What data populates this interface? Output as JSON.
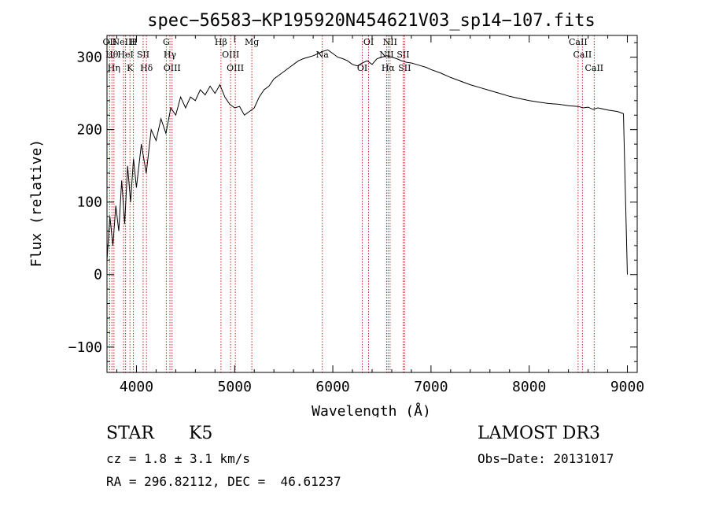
{
  "chart_data": {
    "type": "line",
    "title": "spec−56583−KP195920N454621V03_sp14−107.fits",
    "xlabel": "Wavelength (Å)",
    "ylabel": "Flux (relative)",
    "xlim": [
      3700,
      9100
    ],
    "ylim": [
      -135,
      330
    ],
    "grid": false,
    "xticks": [
      4000,
      5000,
      6000,
      7000,
      8000,
      9000
    ],
    "yticks": [
      -100,
      0,
      100,
      200,
      300
    ],
    "ytick_labels": [
      "−100",
      "0",
      "100",
      "200",
      "300"
    ],
    "series": [
      {
        "name": "spectrum",
        "x": [
          3700,
          3730,
          3760,
          3790,
          3820,
          3850,
          3880,
          3910,
          3940,
          3970,
          4000,
          4050,
          4100,
          4150,
          4200,
          4250,
          4300,
          4350,
          4400,
          4450,
          4500,
          4550,
          4600,
          4650,
          4700,
          4750,
          4800,
          4850,
          4900,
          4950,
          5000,
          5050,
          5100,
          5150,
          5200,
          5250,
          5300,
          5350,
          5400,
          5450,
          5500,
          5550,
          5600,
          5650,
          5700,
          5750,
          5800,
          5850,
          5900,
          5950,
          6000,
          6050,
          6100,
          6150,
          6200,
          6250,
          6300,
          6350,
          6400,
          6450,
          6500,
          6550,
          6600,
          6650,
          6700,
          6750,
          6800,
          6850,
          6900,
          6950,
          7000,
          7100,
          7200,
          7300,
          7400,
          7500,
          7600,
          7700,
          7800,
          7900,
          8000,
          8100,
          8200,
          8300,
          8400,
          8500,
          8550,
          8600,
          8650,
          8700,
          8800,
          8900,
          8960,
          9000
        ],
        "values": [
          20,
          80,
          40,
          95,
          60,
          130,
          70,
          150,
          100,
          160,
          120,
          180,
          140,
          200,
          185,
          215,
          195,
          230,
          220,
          245,
          230,
          245,
          240,
          255,
          248,
          260,
          250,
          262,
          245,
          235,
          230,
          232,
          220,
          225,
          230,
          245,
          255,
          260,
          270,
          275,
          280,
          285,
          290,
          295,
          298,
          300,
          302,
          305,
          308,
          310,
          305,
          300,
          298,
          295,
          290,
          288,
          292,
          295,
          290,
          298,
          300,
          302,
          300,
          298,
          295,
          293,
          292,
          290,
          288,
          286,
          283,
          278,
          272,
          267,
          262,
          258,
          254,
          250,
          246,
          243,
          240,
          238,
          236,
          235,
          233,
          232,
          230,
          231,
          228,
          230,
          227,
          225,
          222,
          0
        ]
      }
    ],
    "lines": [
      {
        "x": 3727,
        "labels": [
          "OII"
        ]
      },
      {
        "x": 3750,
        "labels": [
          "Hθ"
        ]
      },
      {
        "x": 3771,
        "labels": [
          "Hη"
        ]
      },
      {
        "x": 3869,
        "labels": [
          "NeIII"
        ]
      },
      {
        "x": 3889,
        "labels": [
          "HeI"
        ]
      },
      {
        "x": 3934,
        "labels": [
          "K"
        ]
      },
      {
        "x": 3969,
        "labels": [
          "H"
        ]
      },
      {
        "x": 4068,
        "labels": [
          "SII"
        ]
      },
      {
        "x": 4102,
        "labels": [
          "Hδ"
        ]
      },
      {
        "x": 4304,
        "labels": [
          "G"
        ]
      },
      {
        "x": 4341,
        "labels": [
          "Hγ"
        ]
      },
      {
        "x": 4363,
        "labels": [
          "OIII"
        ]
      },
      {
        "x": 4861,
        "labels": [
          "Hβ"
        ]
      },
      {
        "x": 4959,
        "labels": [
          "OIII"
        ]
      },
      {
        "x": 5007,
        "labels": [
          "OIII"
        ]
      },
      {
        "x": 5175,
        "labels": [
          "Mg"
        ]
      },
      {
        "x": 5893,
        "labels": [
          "Na"
        ]
      },
      {
        "x": 6300,
        "labels": [
          "OI"
        ]
      },
      {
        "x": 6364,
        "labels": [
          "OI"
        ]
      },
      {
        "x": 6548,
        "labels": [
          "NII"
        ]
      },
      {
        "x": 6563,
        "labels": [
          "Hα"
        ]
      },
      {
        "x": 6583,
        "labels": [
          "NII"
        ]
      },
      {
        "x": 6716,
        "labels": [
          "SII"
        ]
      },
      {
        "x": 6731,
        "labels": [
          "SII"
        ]
      },
      {
        "x": 8498,
        "labels": [
          "CaII"
        ]
      },
      {
        "x": 8542,
        "labels": [
          "CaII"
        ]
      },
      {
        "x": 8662,
        "labels": [
          "CaII"
        ]
      }
    ]
  },
  "info": {
    "object_class": "STAR",
    "subclass": "K5",
    "survey": "LAMOST DR3",
    "cz": "cz = 1.8 ± 3.1 km/s",
    "obs_date": "Obs−Date: 20131017",
    "coords": "RA = 296.82112, DEC =  46.61237"
  },
  "colors": {
    "line_marker": "#cc2222",
    "spectrum": "#000000",
    "background": "#ffffff"
  }
}
